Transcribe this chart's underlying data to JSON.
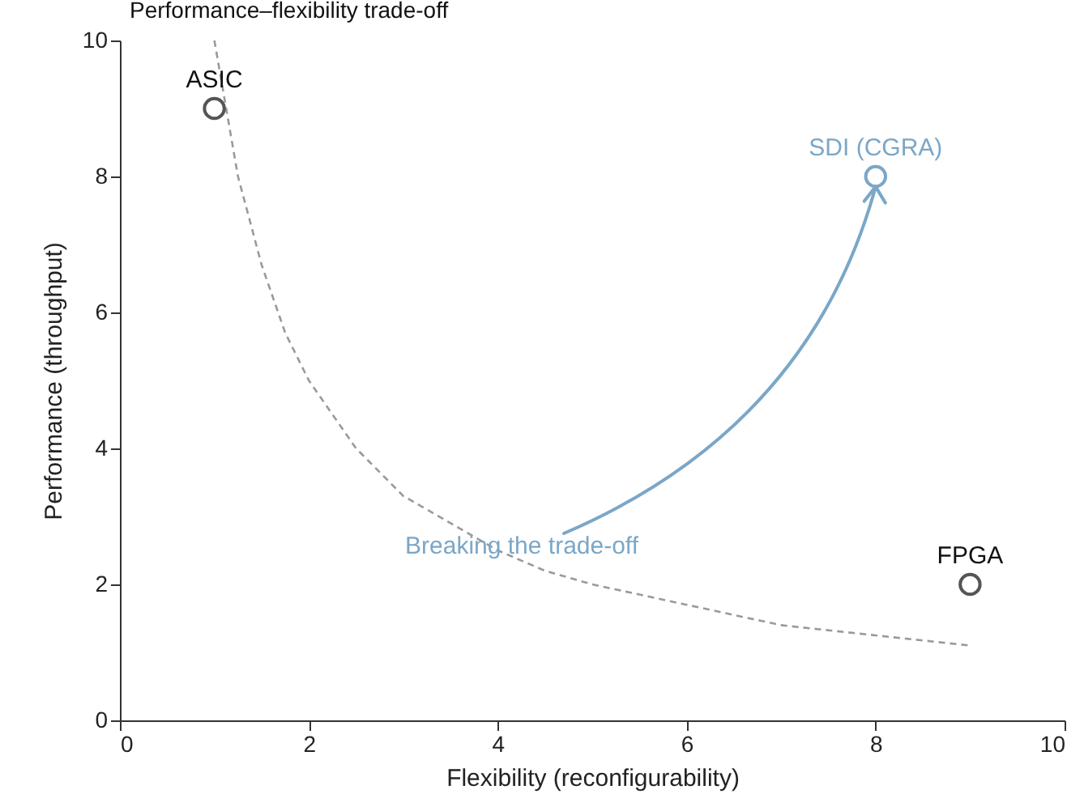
{
  "chart_data": {
    "type": "scatter",
    "title": "Performance–flexibility trade-off",
    "xlabel": "Flexibility (reconfigurability)",
    "ylabel": "Performance (throughput)",
    "xlim": [
      0,
      10
    ],
    "ylim": [
      0,
      10
    ],
    "xticks": [
      0,
      2,
      4,
      6,
      8,
      10
    ],
    "yticks": [
      0,
      2,
      4,
      6,
      8,
      10
    ],
    "series": [
      {
        "type": "line",
        "line_style": "dashed",
        "color": "#9a9a9a",
        "x": [
          1,
          1.25,
          1.5,
          1.75,
          2,
          2.5,
          3,
          3.5,
          4,
          4.5,
          5,
          6,
          7,
          8,
          9
        ],
        "values": [
          10,
          8,
          6.7,
          5.7,
          5,
          4,
          3.3,
          2.9,
          2.5,
          2.2,
          2,
          1.7,
          1.4,
          1.25,
          1.1
        ]
      },
      {
        "name": "ASIC",
        "color": "#555555",
        "marker": "circle",
        "x": [
          1
        ],
        "values": [
          9
        ]
      },
      {
        "name": "SDI (CGRA)",
        "color": "#7ba7c7",
        "marker": "circle",
        "x": [
          8
        ],
        "values": [
          8
        ]
      },
      {
        "name": "FPGA",
        "color": "#555555",
        "marker": "circle",
        "x": [
          9
        ],
        "values": [
          2
        ]
      }
    ],
    "annotations": [
      "Breaking the trade-off"
    ]
  }
}
